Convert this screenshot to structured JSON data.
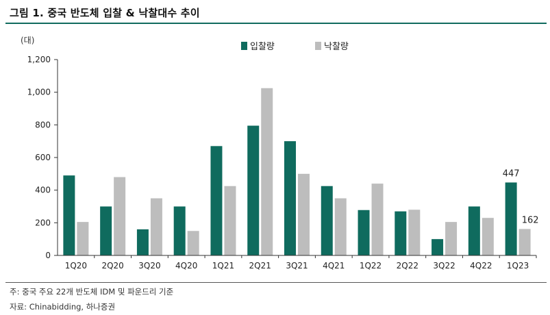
{
  "figure_title": "그림 1. 중국 반도체 입찰 & 낙찰대수 추이",
  "footnote": "주: 중국 주요 22개 반도체 IDM 및 파운드리 기준",
  "source": "자료: Chinabidding, 하나증권",
  "colors": {
    "bid": "#0f6b5e",
    "award": "#bdbdbd",
    "rule": "#0f6b5e"
  },
  "chart_data": {
    "type": "bar",
    "unit_label": "(대)",
    "categories": [
      "1Q20",
      "2Q20",
      "3Q20",
      "4Q20",
      "1Q21",
      "2Q21",
      "3Q21",
      "4Q21",
      "1Q22",
      "2Q22",
      "3Q22",
      "4Q22",
      "1Q23"
    ],
    "series": [
      {
        "name": "입찰량",
        "color": "#0f6b5e",
        "values": [
          490,
          300,
          160,
          300,
          670,
          795,
          700,
          425,
          278,
          270,
          100,
          300,
          447
        ]
      },
      {
        "name": "낙찰량",
        "color": "#bdbdbd",
        "values": [
          205,
          480,
          350,
          150,
          425,
          1025,
          500,
          350,
          440,
          280,
          205,
          230,
          162
        ]
      }
    ],
    "ylim": [
      0,
      1200
    ],
    "yticks": [
      0,
      200,
      400,
      600,
      800,
      1000,
      1200
    ],
    "ytick_labels": [
      "0",
      "200",
      "400",
      "600",
      "800",
      "1,000",
      "1,200"
    ],
    "legend_position": "top-center",
    "annotations": [
      {
        "category": "1Q23",
        "series": "입찰량",
        "text": "447"
      },
      {
        "category": "1Q23",
        "series": "낙찰량",
        "text": "162"
      }
    ]
  }
}
